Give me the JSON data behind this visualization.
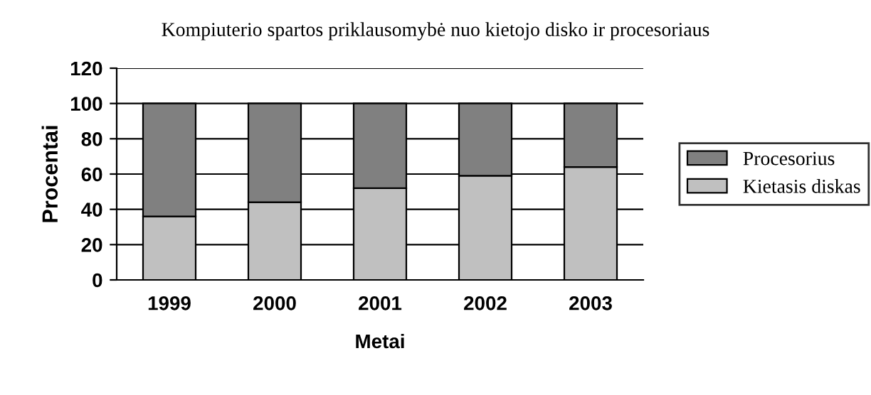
{
  "chart_data": {
    "type": "bar",
    "stacked": true,
    "title": "Kompiuterio spartos priklausomybė nuo kietojo disko ir procesoriaus",
    "xlabel": "Metai",
    "ylabel": "Procentai",
    "categories": [
      "1999",
      "2000",
      "2001",
      "2002",
      "2003"
    ],
    "series": [
      {
        "name": "Kietasis diskas",
        "color": "#c0c0c0",
        "values": [
          36,
          44,
          52,
          59,
          64
        ]
      },
      {
        "name": "Procesorius",
        "color": "#808080",
        "values": [
          64,
          56,
          48,
          41,
          36
        ]
      }
    ],
    "ylim": [
      0,
      120
    ],
    "yticks": [
      0,
      20,
      40,
      60,
      80,
      100,
      120
    ],
    "grid": "y",
    "legend": "right"
  }
}
